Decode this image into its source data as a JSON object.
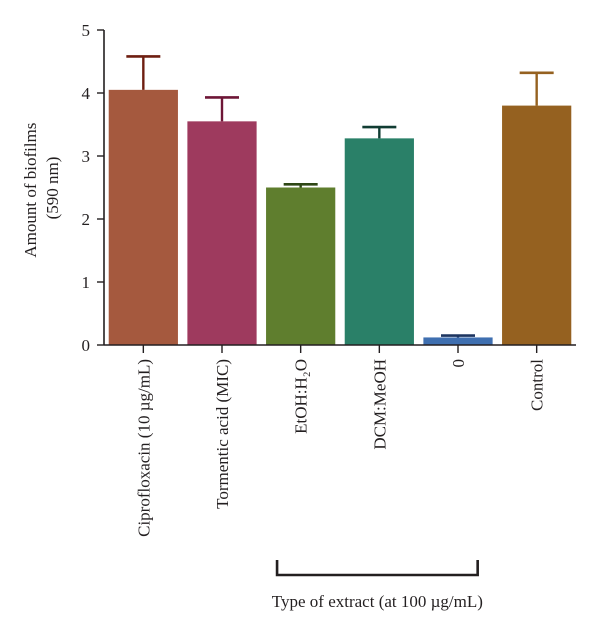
{
  "chart_data": {
    "type": "bar",
    "categories": [
      "Ciprofloxacin (10 µg/mL)",
      "Tormentic acid (MIC)",
      "EtOH:H₂O",
      "DCM:MeOH",
      "0",
      "Control"
    ],
    "values": [
      4.05,
      3.55,
      2.5,
      3.28,
      0.12,
      3.8
    ],
    "errors": [
      0.53,
      0.38,
      0.05,
      0.18,
      0.03,
      0.52
    ],
    "colors": [
      "#a5593e",
      "#9e3a5e",
      "#5f7e2e",
      "#2a8068",
      "#3f6fb0",
      "#956120"
    ],
    "error_colors": [
      "#6e1e10",
      "#6e1637",
      "#2e4715",
      "#113d33",
      "#1d3560",
      "#956120"
    ],
    "ylabel_line1": "Amount of biofilms",
    "ylabel_line2": "(590 nm)",
    "xlabel": "Type of extract (at 100 µg/mL)",
    "ylim": [
      0,
      5
    ],
    "yticks": [
      "0",
      "1",
      "2",
      "3",
      "4",
      "5"
    ],
    "bracket": {
      "from_category": 2,
      "to_category": 4
    },
    "grid": false,
    "legend": "none"
  }
}
